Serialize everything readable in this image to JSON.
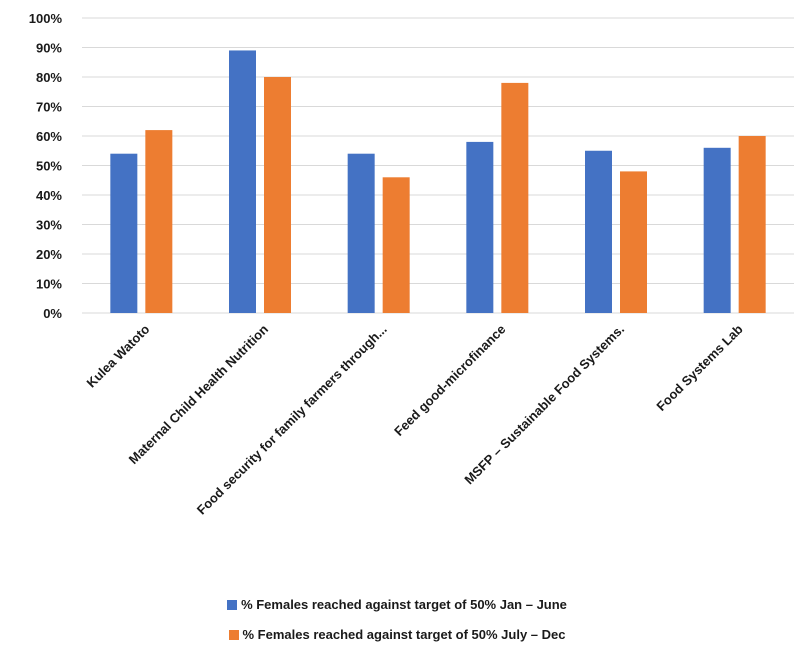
{
  "chart_data": {
    "type": "bar",
    "categories": [
      "Kulea Watoto",
      "Maternal Child Health Nutrition",
      "Food security for family farmers through...",
      "Feed good-microfinance",
      "MSFP – Sustainable Food Systems.",
      "Food Systems Lab"
    ],
    "series": [
      {
        "name": "% Females reached against target of 50% Jan – June",
        "values": [
          0.54,
          0.89,
          0.54,
          0.58,
          0.55,
          0.56
        ],
        "color": "#4472C4"
      },
      {
        "name": "% Females reached against target of 50% July – Dec",
        "values": [
          0.62,
          0.8,
          0.46,
          0.78,
          0.48,
          0.6
        ],
        "color": "#ED7D31"
      }
    ],
    "y_ticks": [
      "0%",
      "10%",
      "20%",
      "30%",
      "40%",
      "50%",
      "60%",
      "70%",
      "80%",
      "90%",
      "100%"
    ],
    "ylim": [
      0,
      1
    ],
    "grid": true,
    "gridline_color": "#d9d9d9",
    "legend_position": "bottom"
  }
}
